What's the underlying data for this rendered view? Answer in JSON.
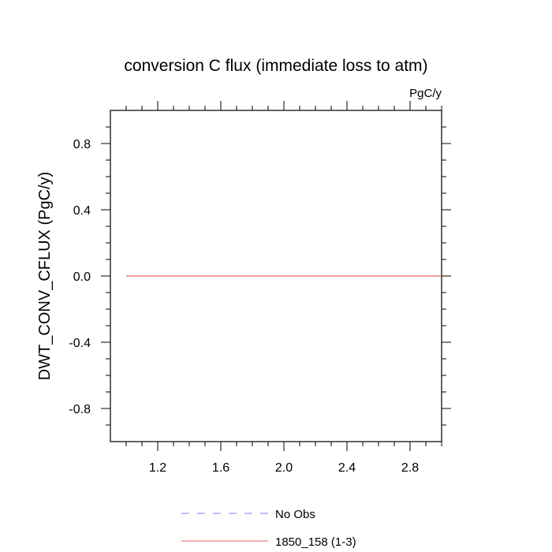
{
  "chart_data": {
    "type": "line",
    "title": "conversion C flux (immediate loss to atm)",
    "units_label": "PgC/y",
    "xlabel": "",
    "ylabel": "DWT_CONV_CFLUX  (PgC/y)",
    "xlim": [
      0.9,
      3.0
    ],
    "ylim": [
      -1.0,
      1.0
    ],
    "x_ticks": [
      1.2,
      1.6,
      2.0,
      2.4,
      2.8
    ],
    "x_tick_labels": [
      "1.2",
      "1.6",
      "2.0",
      "2.4",
      "2.8"
    ],
    "y_ticks": [
      0.8,
      0.4,
      0.0,
      -0.4,
      -0.8
    ],
    "y_tick_labels": [
      "0.8",
      "0.4",
      "0.0",
      "-0.4",
      "-0.8"
    ],
    "grid": false,
    "legend_position": "bottom",
    "series": [
      {
        "name": "No Obs",
        "color": "#8080ff",
        "dash": "dashed",
        "x": [],
        "y": []
      },
      {
        "name": "1850_158 (1-3)",
        "color": "#e06060",
        "dash": "solid",
        "x": [
          1.0,
          3.0
        ],
        "y": [
          0.0,
          0.0
        ]
      }
    ]
  }
}
